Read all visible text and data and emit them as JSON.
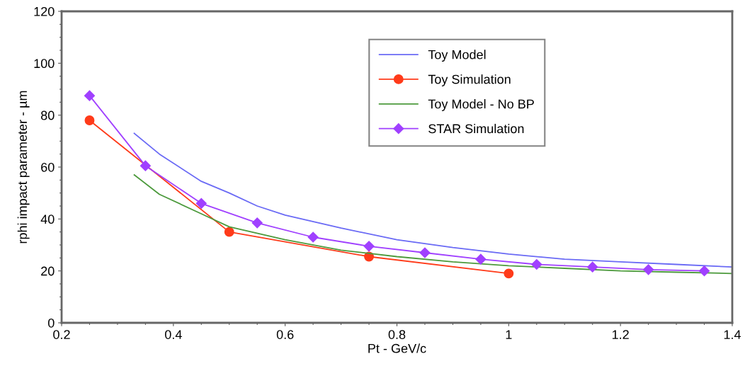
{
  "chart_data": {
    "type": "line",
    "xlabel": "Pt - GeV/c",
    "ylabel": "rphi impact parameter - µm",
    "xlim": [
      0.2,
      1.4
    ],
    "xticks": [
      0.2,
      0.4,
      0.6,
      0.8,
      1,
      1.2,
      1.4
    ],
    "ylim": [
      0,
      120
    ],
    "yticks": [
      0,
      20,
      40,
      60,
      80,
      100,
      120
    ],
    "grid": false,
    "legend": "top right",
    "series": [
      {
        "name": "Toy Model",
        "color": "#6a6af5",
        "marker": "none",
        "x": [
          0.33,
          0.375,
          0.45,
          0.5,
          0.55,
          0.6,
          0.7,
          0.8,
          0.9,
          1.0,
          1.1,
          1.2,
          1.3,
          1.4
        ],
        "values": [
          73,
          65,
          54.5,
          50,
          45,
          41.5,
          36.5,
          32,
          29,
          26.5,
          24.5,
          23.5,
          22.5,
          21.5
        ]
      },
      {
        "name": "Toy Simulation",
        "color": "#ff3b1a",
        "marker": "circle",
        "x": [
          0.25,
          0.5,
          0.75,
          1.0
        ],
        "values": [
          78,
          35,
          25.5,
          19
        ]
      },
      {
        "name": "Toy Model - No BP",
        "color": "#4c9a3c",
        "marker": "none",
        "x": [
          0.33,
          0.375,
          0.45,
          0.5,
          0.6,
          0.7,
          0.8,
          0.9,
          1.0,
          1.1,
          1.2,
          1.3,
          1.4
        ],
        "values": [
          57,
          49.5,
          42,
          37,
          32,
          28,
          25.5,
          23.5,
          22,
          21,
          20,
          19.5,
          19
        ]
      },
      {
        "name": "STAR Simulation",
        "color": "#a040ff",
        "marker": "diamond",
        "x": [
          0.25,
          0.35,
          0.45,
          0.55,
          0.65,
          0.75,
          0.85,
          0.95,
          1.05,
          1.15,
          1.25,
          1.35
        ],
        "values": [
          87.5,
          60.5,
          46,
          38.5,
          33,
          29.5,
          27,
          24.5,
          22.5,
          21.5,
          20.5,
          20
        ]
      }
    ]
  }
}
